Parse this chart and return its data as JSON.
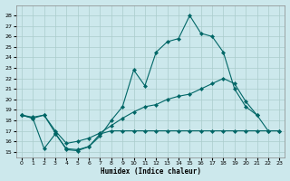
{
  "xlabel": "Humidex (Indice chaleur)",
  "background_color": "#cce8ec",
  "grid_color": "#aacccc",
  "line_color": "#006666",
  "xlim": [
    -0.5,
    23.5
  ],
  "ylim": [
    14.5,
    29.0
  ],
  "yticks": [
    15,
    16,
    17,
    18,
    19,
    20,
    21,
    22,
    23,
    24,
    25,
    26,
    27,
    28
  ],
  "xticks": [
    0,
    1,
    2,
    3,
    4,
    5,
    6,
    7,
    8,
    9,
    10,
    11,
    12,
    13,
    14,
    15,
    16,
    17,
    18,
    19,
    20,
    21,
    22,
    23
  ],
  "series": [
    {
      "x": [
        0,
        1,
        2,
        3,
        4,
        5,
        6,
        7,
        8,
        9,
        10,
        11,
        12,
        13,
        14,
        15,
        16,
        17,
        18,
        19,
        20,
        21
      ],
      "y": [
        18.5,
        18.2,
        18.5,
        16.8,
        15.2,
        15.1,
        15.5,
        16.5,
        18.0,
        19.3,
        22.8,
        21.3,
        24.5,
        25.5,
        25.8,
        28.0,
        26.3,
        26.0,
        24.5,
        21.0,
        19.3,
        18.5
      ]
    },
    {
      "x": [
        0,
        1,
        2,
        3,
        4,
        5,
        6,
        7,
        8,
        9,
        10,
        11,
        12,
        13,
        14,
        15,
        16,
        17,
        18,
        19,
        20,
        21,
        22,
        23
      ],
      "y": [
        18.5,
        18.3,
        18.5,
        17.0,
        15.8,
        16.0,
        16.3,
        16.8,
        17.5,
        18.2,
        18.8,
        19.3,
        19.5,
        20.0,
        20.3,
        20.5,
        21.0,
        21.5,
        22.0,
        21.5,
        19.8,
        18.5,
        17.0,
        17.0
      ]
    },
    {
      "x": [
        0,
        1,
        2,
        3,
        4,
        5,
        6,
        7,
        8,
        9,
        10,
        11,
        12,
        13,
        14,
        15,
        16,
        17,
        18,
        19,
        20,
        21,
        22,
        23
      ],
      "y": [
        18.5,
        18.2,
        15.3,
        16.7,
        15.3,
        15.2,
        15.5,
        16.7,
        17.0,
        17.0,
        17.0,
        17.0,
        17.0,
        17.0,
        17.0,
        17.0,
        17.0,
        17.0,
        17.0,
        17.0,
        17.0,
        17.0,
        17.0,
        17.0
      ]
    }
  ]
}
